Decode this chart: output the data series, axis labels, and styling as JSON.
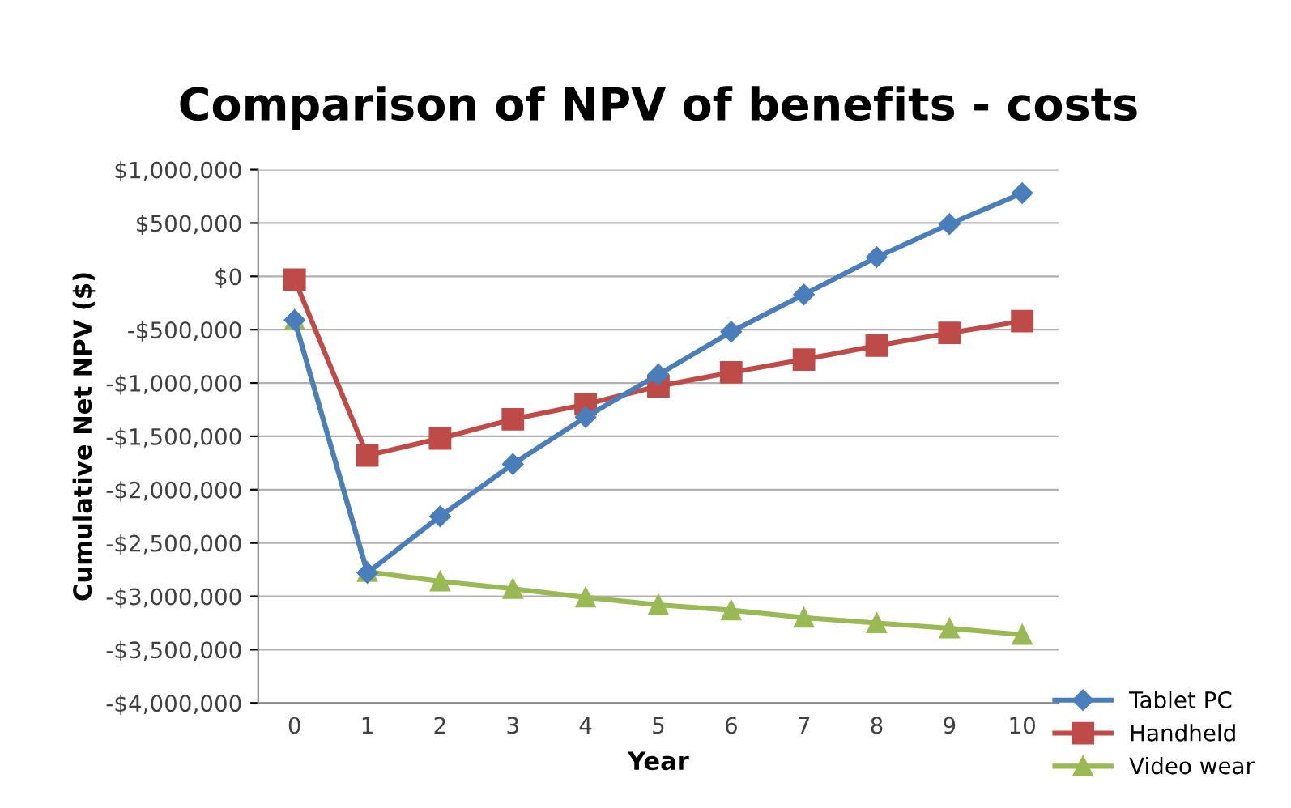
{
  "chart_data": {
    "type": "line",
    "title": "Comparison of NPV of benefits - costs",
    "xlabel": "Year",
    "ylabel": "Cumulative Net NPV ($)",
    "categories": [
      "0",
      "1",
      "2",
      "3",
      "4",
      "5",
      "6",
      "7",
      "8",
      "9",
      "10"
    ],
    "series": [
      {
        "name": "Tablet PC",
        "color": "#4a7ebb",
        "marker": "diamond",
        "values": [
          -410000,
          -2780000,
          -2250000,
          -1760000,
          -1320000,
          -920000,
          -520000,
          -170000,
          180000,
          490000,
          780000
        ]
      },
      {
        "name": "Handheld",
        "color": "#be4b48",
        "marker": "square",
        "values": [
          -30000,
          -1680000,
          -1520000,
          -1340000,
          -1200000,
          -1030000,
          -900000,
          -780000,
          -650000,
          -530000,
          -420000
        ]
      },
      {
        "name": "Video wear",
        "color": "#98b954",
        "marker": "triangle",
        "values": [
          -410000,
          -2770000,
          -2860000,
          -2930000,
          -3010000,
          -3080000,
          -3130000,
          -3200000,
          -3250000,
          -3300000,
          -3360000
        ]
      }
    ],
    "ylim": [
      -4000000,
      1000000
    ],
    "yticks": [
      {
        "value": -4000000,
        "label": "-$4,000,000"
      },
      {
        "value": -3500000,
        "label": "-$3,500,000"
      },
      {
        "value": -3000000,
        "label": "-$3,000,000"
      },
      {
        "value": -2500000,
        "label": "-$2,500,000"
      },
      {
        "value": -2000000,
        "label": "-$2,000,000"
      },
      {
        "value": -1500000,
        "label": "-$1,500,000"
      },
      {
        "value": -1000000,
        "label": "-$1,000,000"
      },
      {
        "value": -500000,
        "label": "-$500,000"
      },
      {
        "value": 0,
        "label": "$0"
      },
      {
        "value": 500000,
        "label": "$500,000"
      },
      {
        "value": 1000000,
        "label": "$1,000,000"
      }
    ],
    "grid": "y",
    "legend": "bottom right"
  }
}
